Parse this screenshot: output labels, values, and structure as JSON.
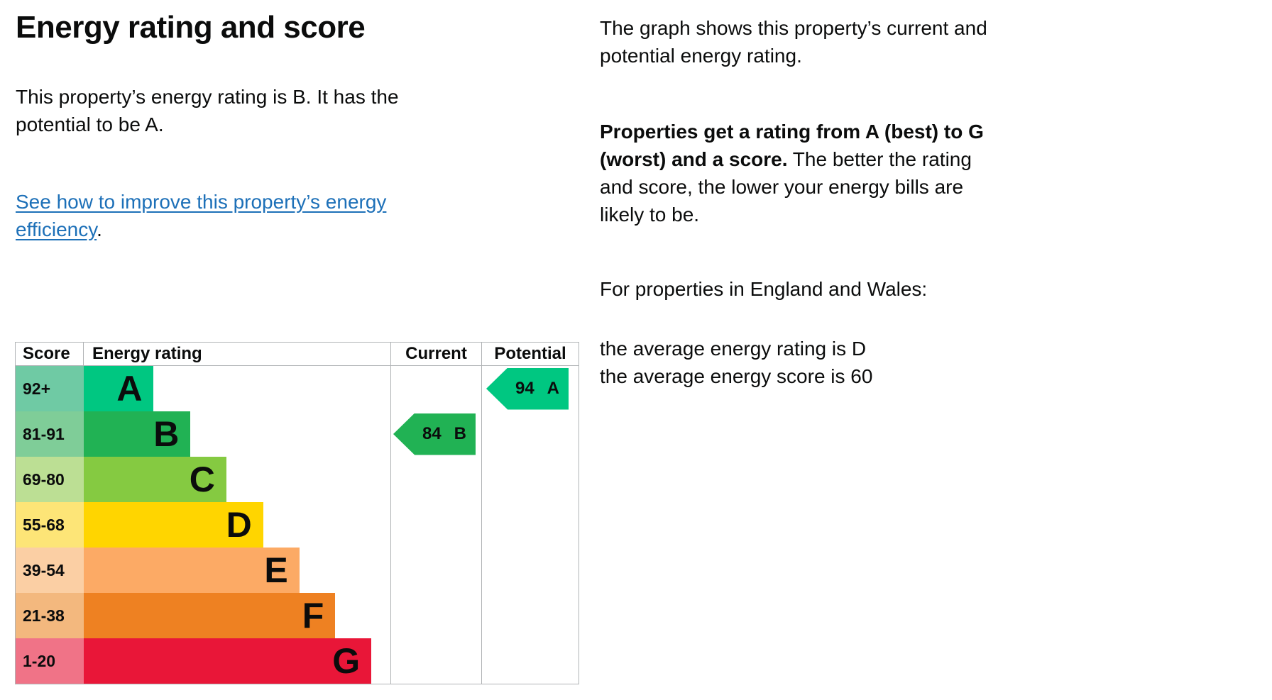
{
  "left": {
    "title": "Energy rating and score",
    "intro": "This property’s energy rating is B. It has the\npotential to be A.",
    "link_text": "See how to improve this property’s energy\nefficiency",
    "link_suffix": "."
  },
  "right": {
    "para1": "The graph shows this property’s current and\npotential energy rating.",
    "para2_bold": "Properties get a rating from A (best) to G\n(worst) and a score.",
    "para2_rest": " The better the rating\nand score, the lower your energy bills are\nlikely to be.",
    "para3": "For properties in England and Wales:",
    "para4": "the average energy rating is D\nthe average energy score is 60"
  },
  "chart_data": {
    "type": "table",
    "description": "UK EPC energy efficiency rating chart",
    "columns": [
      "Score",
      "Energy rating",
      "Current",
      "Potential"
    ],
    "bands": [
      {
        "score": "92+",
        "rating": "A",
        "color": "#00c781",
        "score_bg": "#6fcaa4",
        "width_pct": 22.8
      },
      {
        "score": "81-91",
        "rating": "B",
        "color": "#21b254",
        "score_bg": "#7fcd98",
        "width_pct": 34.8
      },
      {
        "score": "69-80",
        "rating": "C",
        "color": "#85ca41",
        "score_bg": "#bcdf94",
        "width_pct": 46.5
      },
      {
        "score": "55-68",
        "rating": "D",
        "color": "#ffd500",
        "score_bg": "#fde577",
        "width_pct": 58.5
      },
      {
        "score": "39-54",
        "rating": "E",
        "color": "#fcaa65",
        "score_bg": "#fbcfa4",
        "width_pct": 70.3
      },
      {
        "score": "21-38",
        "rating": "F",
        "color": "#ee8122",
        "score_bg": "#f3b87e",
        "width_pct": 82.0
      },
      {
        "score": "1-20",
        "rating": "G",
        "color": "#e91638",
        "score_bg": "#f07387",
        "width_pct": 93.8
      }
    ],
    "current": {
      "label": "Current",
      "score": 84,
      "rating": "B",
      "band_index": 1,
      "color": "#21b254"
    },
    "potential": {
      "label": "Potential",
      "score": 94,
      "rating": "A",
      "band_index": 0,
      "color": "#00c781"
    }
  }
}
